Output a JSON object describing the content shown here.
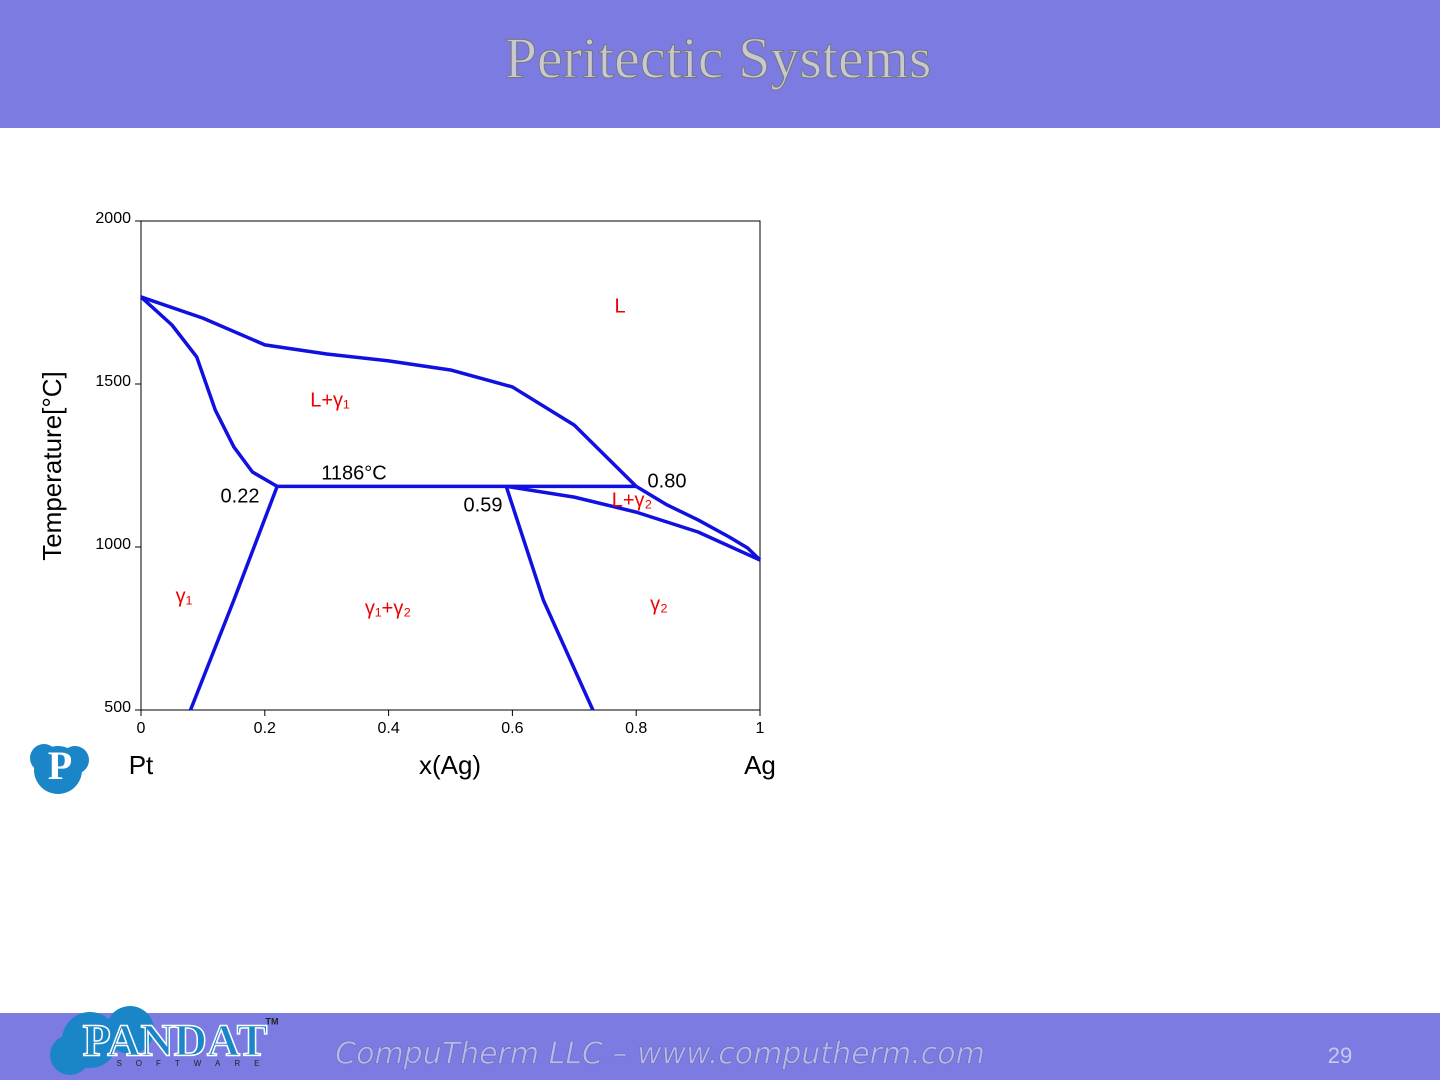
{
  "header": {
    "title": "Peritectic Systems"
  },
  "chart_data": {
    "type": "line",
    "xlabel": "x(Ag)",
    "ylabel": "Temperature[°C]",
    "x_end_labels": [
      "Pt",
      "Ag"
    ],
    "xlim": [
      0,
      1
    ],
    "ylim": [
      500,
      2000
    ],
    "xticks": [
      0,
      0.2,
      0.4,
      0.6,
      0.8,
      1
    ],
    "yticks": [
      500,
      1000,
      1500,
      2000
    ],
    "series": [
      {
        "color": "#1010e0",
        "x": [
          0,
          0.1,
          0.2,
          0.3,
          0.4,
          0.5,
          0.6,
          0.7,
          0.8
        ],
        "values": [
          1767,
          1702,
          1620,
          1592,
          1571,
          1543,
          1491,
          1374,
          1186
        ]
      },
      {
        "color": "#1010e0",
        "x": [
          0,
          0.05,
          0.09,
          0.12,
          0.15,
          0.18,
          0.22
        ],
        "values": [
          1767,
          1681,
          1583,
          1420,
          1307,
          1230,
          1186
        ]
      },
      {
        "color": "#1010e0",
        "x": [
          0.22,
          0.15,
          0.08
        ],
        "values": [
          1186,
          837,
          500
        ]
      },
      {
        "color": "#1010e0",
        "x": [
          0.22,
          0.8
        ],
        "values": [
          1186,
          1186
        ]
      },
      {
        "color": "#1010e0",
        "x": [
          0.59,
          0.65,
          0.73
        ],
        "values": [
          1186,
          837,
          500
        ]
      },
      {
        "color": "#1010e0",
        "x": [
          0.59,
          0.7,
          0.8,
          0.9,
          1
        ],
        "values": [
          1186,
          1153,
          1107,
          1046,
          960
        ]
      },
      {
        "color": "#1010e0",
        "x": [
          0.8,
          0.85,
          0.9,
          0.95,
          0.98,
          1
        ],
        "values": [
          1186,
          1129,
          1083,
          1031,
          997,
          960
        ]
      }
    ],
    "annotations": [
      {
        "text": "L",
        "color": "#ee0000"
      },
      {
        "text": "L+γ₁",
        "color": "#ee0000"
      },
      {
        "text": "1186°C",
        "color": "#000000"
      },
      {
        "text": "0.22",
        "color": "#000000"
      },
      {
        "text": "0.59",
        "color": "#000000"
      },
      {
        "text": "0.80",
        "color": "#000000"
      },
      {
        "text": "L+γ₂",
        "color": "#ee0000"
      },
      {
        "text": "γ₁",
        "color": "#ee0000"
      },
      {
        "text": "γ₁+γ₂",
        "color": "#ee0000"
      },
      {
        "text": "γ₂",
        "color": "#ee0000"
      }
    ]
  },
  "footer": {
    "logo": "PANDAT",
    "logo_sub": "SOFTWARE",
    "trademark": "TM",
    "text": "CompuTherm LLC – www.computherm.com",
    "page": "29"
  }
}
